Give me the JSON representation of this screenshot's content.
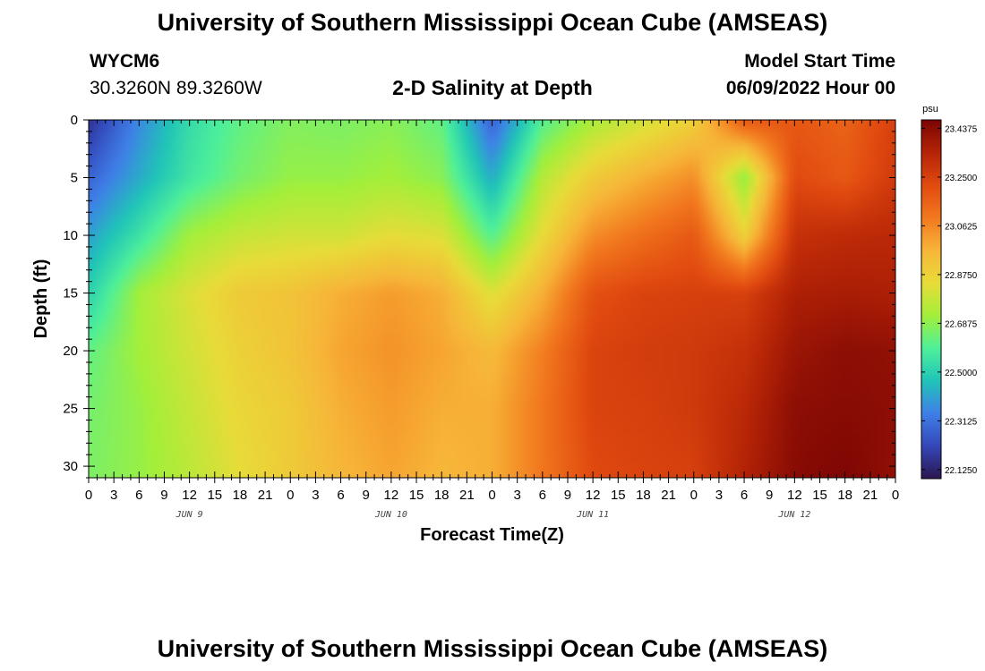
{
  "page": {
    "title_top": "University of Southern Mississippi Ocean Cube (AMSEAS)",
    "title_bottom": "University of Southern Mississippi Ocean Cube (AMSEAS)",
    "station_name": "WYCM6",
    "station_coords": "30.3260N  89.3260W",
    "subtitle": "2-D Salinity at Depth",
    "model_start_label": "Model Start Time",
    "model_start_value": "06/09/2022 Hour 00"
  },
  "chart_data": {
    "type": "heatmap",
    "title": "2-D Salinity at Depth",
    "xlabel": "Forecast Time(Z)",
    "ylabel": "Depth (ft)",
    "x_range_hours": [
      0,
      96
    ],
    "y_range_ft": [
      0,
      31
    ],
    "x_tick_labels": [
      "0",
      "3",
      "6",
      "9",
      "12",
      "15",
      "18",
      "21",
      "0",
      "3",
      "6",
      "9",
      "12",
      "15",
      "18",
      "21",
      "0",
      "3",
      "6",
      "9",
      "12",
      "15",
      "18",
      "21",
      "0",
      "3",
      "6",
      "9",
      "12",
      "15",
      "18",
      "21",
      "0"
    ],
    "date_labels": [
      {
        "label": "JUN 9",
        "hour": 12
      },
      {
        "label": "JUN 10",
        "hour": 36
      },
      {
        "label": "JUN 11",
        "hour": 60
      },
      {
        "label": "JUN 12",
        "hour": 84
      }
    ],
    "y_ticks": [
      0,
      5,
      10,
      15,
      20,
      25,
      30
    ],
    "colorbar": {
      "unit": "psu",
      "min": 22.09,
      "max": 23.47,
      "tick_labels": [
        "23.4375",
        "23.2500",
        "23.0625",
        "22.8750",
        "22.6875",
        "22.5000",
        "22.3125",
        "22.1250"
      ],
      "tick_values": [
        23.4375,
        23.25,
        23.0625,
        22.875,
        22.6875,
        22.5,
        22.3125,
        22.125
      ],
      "colors": [
        "#2b1650",
        "#3447b8",
        "#3f7fe8",
        "#20c4b8",
        "#4ef09a",
        "#a3ef3a",
        "#e8dc38",
        "#f7b538",
        "#f2781e",
        "#e14a10",
        "#b52406",
        "#7a0404"
      ]
    },
    "profiles": {
      "hours": [
        0,
        6,
        12,
        18,
        24,
        30,
        36,
        42,
        48,
        54,
        60,
        66,
        72,
        78,
        84,
        90,
        96
      ],
      "depths_ft": [
        0,
        5,
        10,
        15,
        20,
        25,
        31
      ],
      "salinity_psu": [
        [
          22.16,
          22.36,
          22.53,
          22.62,
          22.67,
          22.66,
          22.68,
          22.62,
          22.27,
          22.6,
          22.73,
          22.8,
          22.88,
          23.18,
          23.18,
          23.15,
          23.25
        ],
        [
          22.28,
          22.42,
          22.56,
          22.65,
          22.7,
          22.7,
          22.72,
          22.68,
          22.42,
          22.75,
          22.9,
          22.98,
          23.05,
          22.7,
          23.22,
          23.18,
          23.27
        ],
        [
          22.4,
          22.55,
          22.72,
          22.78,
          22.8,
          22.8,
          22.84,
          22.82,
          22.6,
          22.85,
          23.05,
          23.12,
          23.18,
          22.88,
          23.3,
          23.32,
          23.33
        ],
        [
          22.5,
          22.72,
          22.82,
          22.9,
          22.92,
          22.98,
          23.02,
          22.98,
          22.82,
          22.98,
          23.2,
          23.24,
          23.25,
          23.25,
          23.36,
          23.37,
          23.36
        ],
        [
          22.62,
          22.72,
          22.8,
          22.88,
          22.92,
          23.0,
          23.04,
          23.0,
          22.95,
          23.08,
          23.24,
          23.26,
          23.27,
          23.3,
          23.4,
          23.43,
          23.42
        ],
        [
          22.65,
          22.7,
          22.78,
          22.86,
          22.9,
          22.98,
          23.02,
          22.98,
          22.98,
          23.1,
          23.24,
          23.25,
          23.27,
          23.33,
          23.43,
          23.44,
          23.43
        ],
        [
          22.66,
          22.7,
          22.76,
          22.84,
          22.9,
          22.96,
          23.0,
          22.96,
          22.98,
          23.1,
          23.22,
          23.24,
          23.25,
          23.35,
          23.44,
          23.46,
          23.42
        ]
      ]
    }
  }
}
